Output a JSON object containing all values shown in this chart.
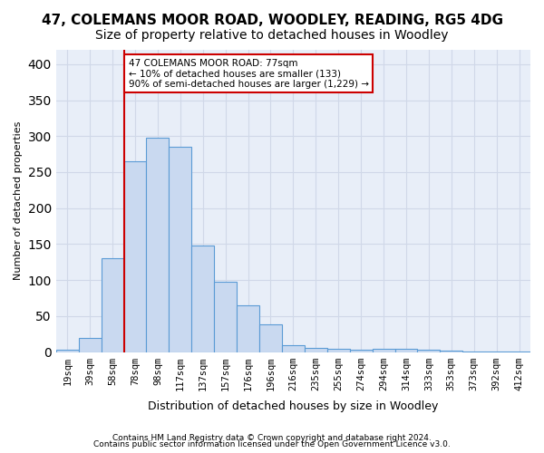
{
  "title": "47, COLEMANS MOOR ROAD, WOODLEY, READING, RG5 4DG",
  "subtitle": "Size of property relative to detached houses in Woodley",
  "xlabel": "Distribution of detached houses by size in Woodley",
  "ylabel": "Number of detached properties",
  "footer1": "Contains HM Land Registry data © Crown copyright and database right 2024.",
  "footer2": "Contains public sector information licensed under the Open Government Licence v3.0.",
  "categories": [
    "19sqm",
    "39sqm",
    "58sqm",
    "78sqm",
    "98sqm",
    "117sqm",
    "137sqm",
    "157sqm",
    "176sqm",
    "196sqm",
    "216sqm",
    "235sqm",
    "255sqm",
    "274sqm",
    "294sqm",
    "314sqm",
    "333sqm",
    "353sqm",
    "373sqm",
    "392sqm",
    "412sqm"
  ],
  "values": [
    3,
    20,
    130,
    265,
    298,
    285,
    148,
    98,
    65,
    38,
    9,
    6,
    4,
    3,
    5,
    4,
    3,
    2,
    1,
    1,
    1
  ],
  "bar_color": "#c9d9f0",
  "bar_edge_color": "#5b9bd5",
  "property_bin_index": 3,
  "annotation_text1": "47 COLEMANS MOOR ROAD: 77sqm",
  "annotation_text2": "← 10% of detached houses are smaller (133)",
  "annotation_text3": "90% of semi-detached houses are larger (1,229) →",
  "annotation_box_color": "#ffffff",
  "annotation_border_color": "#cc0000",
  "vline_color": "#cc0000",
  "ylim": [
    0,
    420
  ],
  "yticks": [
    0,
    50,
    100,
    150,
    200,
    250,
    300,
    350,
    400
  ],
  "grid_color": "#d0d8e8",
  "bg_color": "#e8eef8",
  "title_fontsize": 11,
  "subtitle_fontsize": 10
}
